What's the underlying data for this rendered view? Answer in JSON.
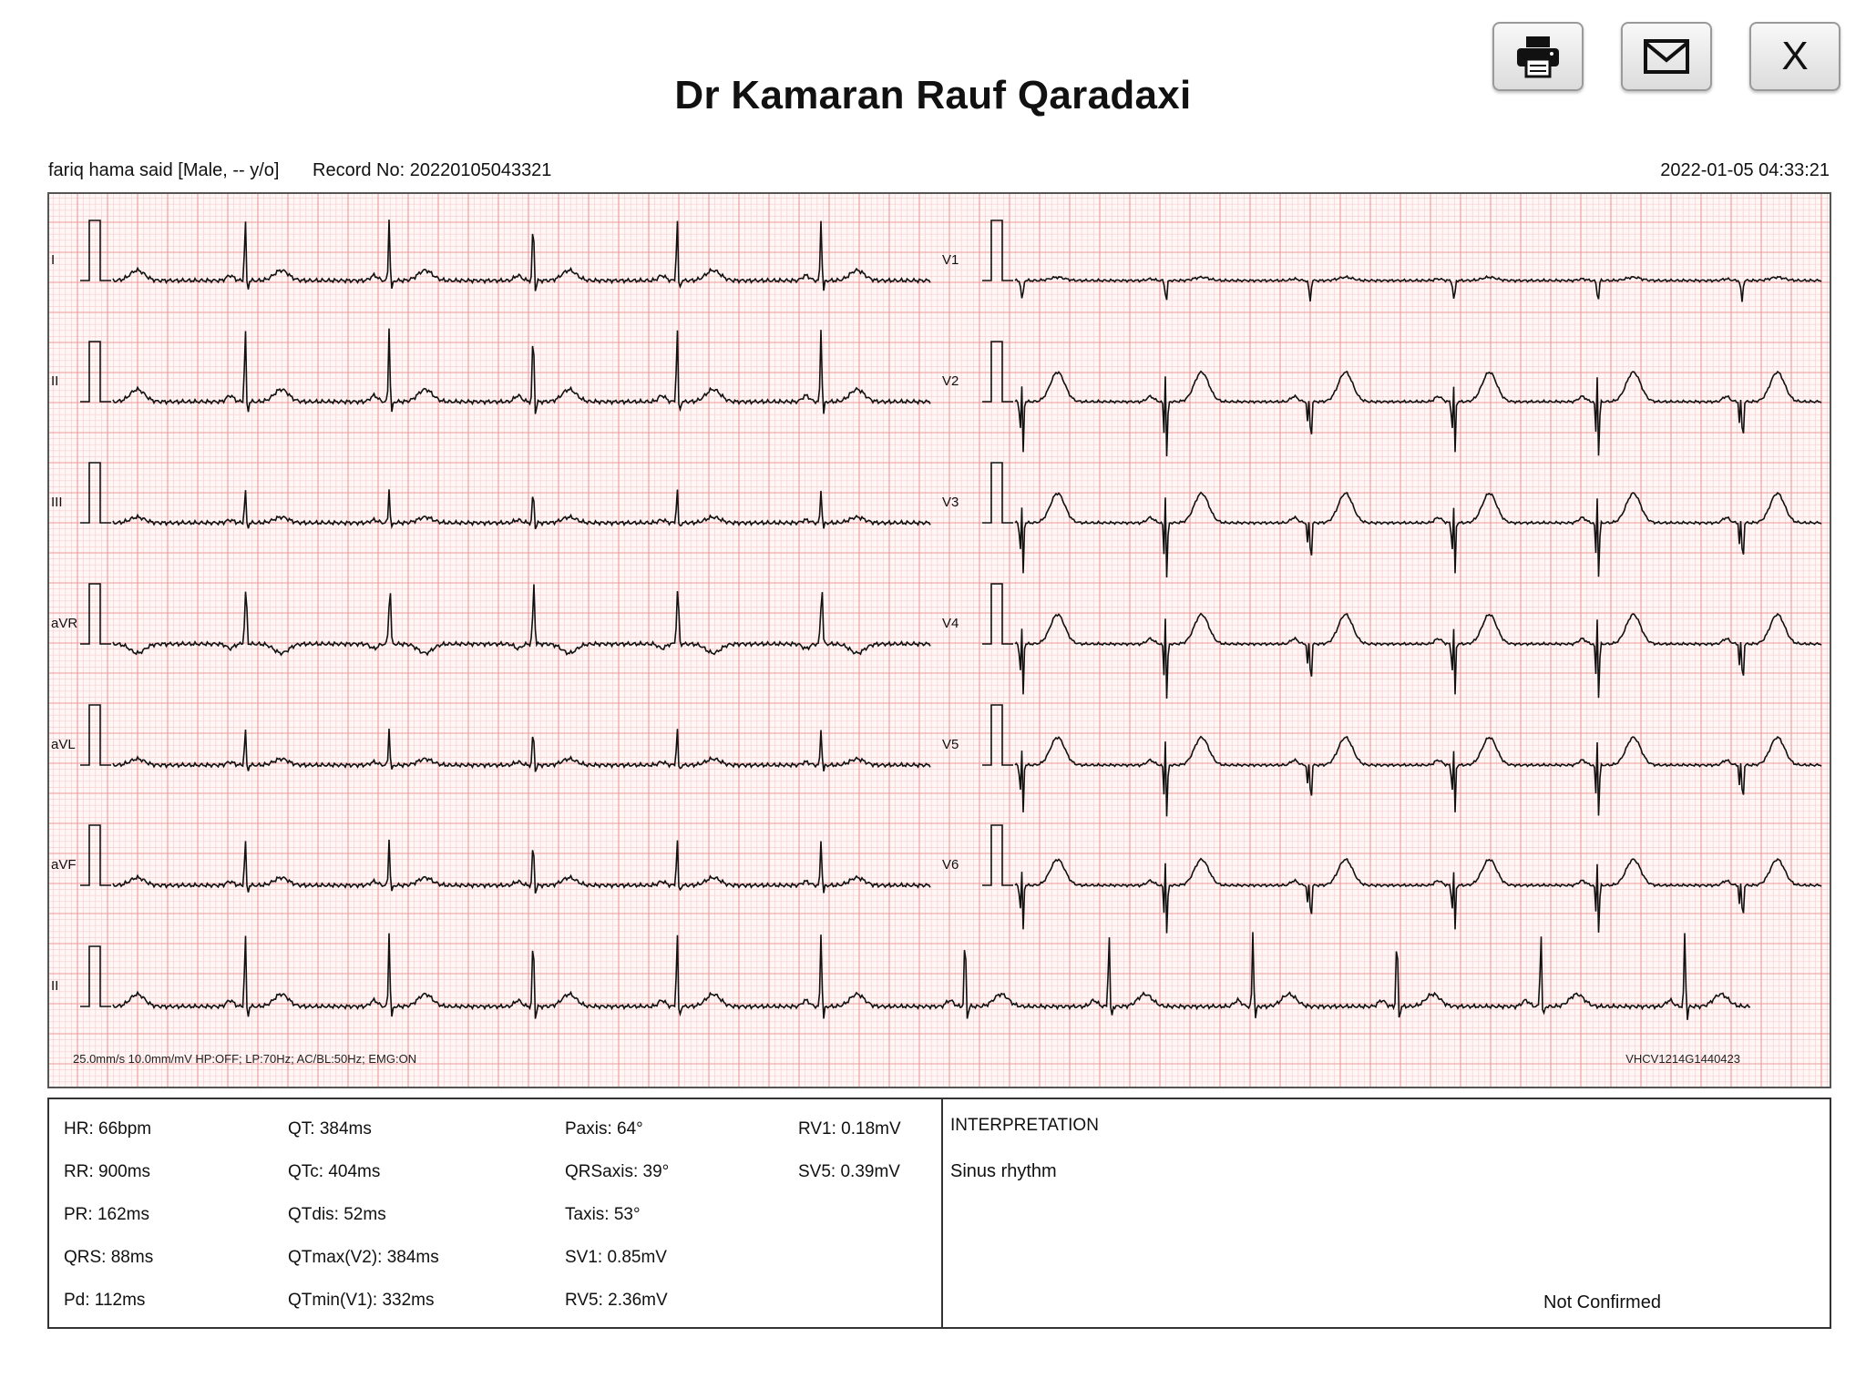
{
  "header": {
    "title": "Dr Kamaran Rauf Qaradaxi",
    "print_icon": "printer-icon",
    "email_icon": "envelope-icon",
    "close_label": "X"
  },
  "patient": {
    "info": "fariq hama said [Male, -- y/o]",
    "record": "Record No: 20220105043321",
    "datetime": "2022-01-05 04:33:21"
  },
  "ecg": {
    "grid_minor_color": "#f7d0d0",
    "grid_major_color": "#ec9a9a",
    "trace_color": "#111111",
    "left_leads": [
      "I",
      "II",
      "III",
      "aVR",
      "aVL",
      "aVF"
    ],
    "right_leads": [
      "V1",
      "V2",
      "V3",
      "V4",
      "V5",
      "V6"
    ],
    "rhythm_lead": "II",
    "settings": "25.0mm/s  10.0mm/mV     HP:OFF; LP:70Hz; AC/BL:50Hz; EMG:ON",
    "device_id": "VHCV1214G1440423"
  },
  "params": {
    "col1": [
      "HR: 66bpm",
      "RR: 900ms",
      "PR: 162ms",
      "QRS: 88ms",
      "Pd: 112ms"
    ],
    "col2": [
      "QT: 384ms",
      "QTc: 404ms",
      "QTdis: 52ms",
      "QTmax(V2): 384ms",
      "QTmin(V1): 332ms"
    ],
    "col3": [
      "Paxis: 64°",
      "QRSaxis: 39°",
      "Taxis: 53°",
      "SV1: 0.85mV",
      "RV5: 2.36mV"
    ],
    "col4": [
      "RV1: 0.18mV",
      "SV5: 0.39mV"
    ]
  },
  "interpretation": {
    "heading": "INTERPRETATION",
    "text": "Sinus rhythm",
    "status": "Not Confirmed"
  }
}
